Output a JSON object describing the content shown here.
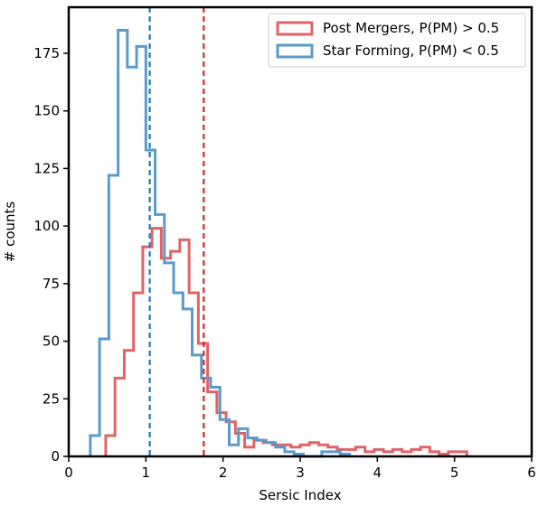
{
  "chart_data": {
    "type": "histogram",
    "xlabel": "Sersic Index",
    "ylabel": "# counts",
    "xlim": [
      0,
      6
    ],
    "ylim": [
      0,
      195
    ],
    "x_ticks": [
      "0",
      "1",
      "2",
      "3",
      "4",
      "5",
      "6"
    ],
    "y_ticks": [
      "0",
      "25",
      "50",
      "75",
      "100",
      "125",
      "150",
      "175"
    ],
    "legend_position": "top-right",
    "bin_width": 0.12,
    "series": [
      {
        "name": "Post Mergers, P(PM) > 0.5",
        "color": "#e06467",
        "bin_start": 0.48,
        "counts": [
          9,
          34,
          46,
          71,
          91,
          99,
          86,
          89,
          94,
          71,
          49,
          28,
          19,
          15,
          10,
          4,
          7,
          6,
          5,
          5,
          4,
          5,
          6,
          5,
          4,
          3,
          3,
          4,
          2,
          3,
          2,
          3,
          2,
          3,
          4,
          2,
          1,
          2,
          2
        ],
        "median_line": 1.75
      },
      {
        "name": "Star Forming, P(PM) < 0.5",
        "color": "#5a9bcc",
        "bin_start": 0.28,
        "counts": [
          9,
          51,
          122,
          185,
          169,
          178,
          133,
          105,
          84,
          71,
          64,
          44,
          34,
          30,
          16,
          5,
          12,
          8,
          7,
          6,
          4,
          2,
          1,
          0,
          0,
          2,
          2,
          1
        ],
        "median_line": 1.05
      }
    ]
  }
}
